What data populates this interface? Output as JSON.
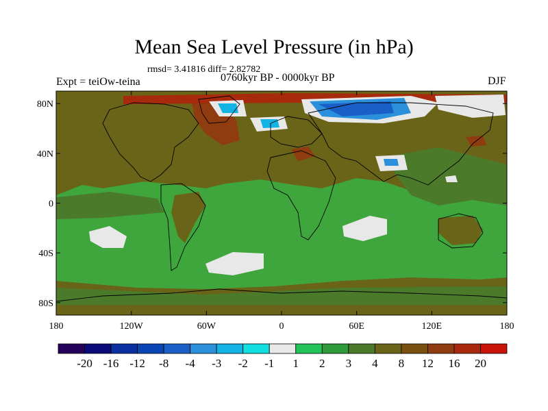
{
  "title": "Mean Sea Level Pressure (in hPa)",
  "stats_text": "rmsd= 3.41816 diff= 2.82782",
  "period_text": "0760kyr BP - 0000kyr BP",
  "experiment_text": "Expt = teiOw-teina",
  "season_text": "DJF",
  "map": {
    "lon_range": [
      -180,
      180
    ],
    "lat_range": [
      -90,
      90
    ],
    "lon_ticks": [
      {
        "value": -180,
        "label": "180"
      },
      {
        "value": -120,
        "label": "120W"
      },
      {
        "value": -60,
        "label": "60W"
      },
      {
        "value": 0,
        "label": "0"
      },
      {
        "value": 60,
        "label": "60E"
      },
      {
        "value": 120,
        "label": "120E"
      },
      {
        "value": 180,
        "label": "180"
      }
    ],
    "lat_ticks": [
      {
        "value": 80,
        "label": "80N"
      },
      {
        "value": 40,
        "label": "40N"
      },
      {
        "value": 0,
        "label": "0"
      },
      {
        "value": -40,
        "label": "40S"
      },
      {
        "value": -80,
        "label": "80S"
      }
    ],
    "background_color": "#3fa63d",
    "coastline_color": "#000000"
  },
  "colorbar": {
    "colors": [
      "#25005a",
      "#0a0a7a",
      "#0a2fa0",
      "#0a45b4",
      "#1a5fc8",
      "#2a90dc",
      "#12b4e6",
      "#10e0e0",
      "#e8e8e8",
      "#22c45a",
      "#2f9a3a",
      "#4a7a2a",
      "#6a6418",
      "#7a5010",
      "#8e3c10",
      "#a82a0c",
      "#c8120a"
    ],
    "labels": [
      "-20",
      "-16",
      "-12",
      "-8",
      "-4",
      "-3",
      "-2",
      "-1",
      "1",
      "2",
      "3",
      "4",
      "8",
      "12",
      "16",
      "20"
    ]
  }
}
